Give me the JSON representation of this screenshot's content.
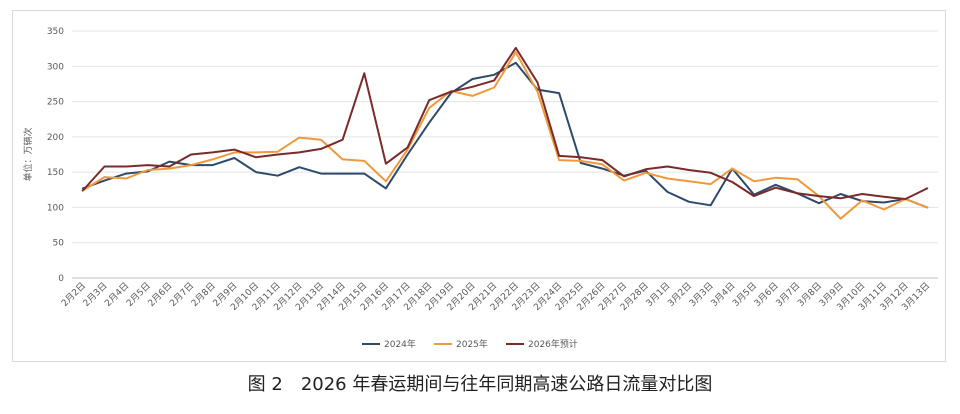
{
  "caption": {
    "prefix": "图 2",
    "text": "2026 年春运期间与往年同期高速公路日流量对比图"
  },
  "chart_data": {
    "type": "line",
    "title": "",
    "ylabel": "单位：万辆次",
    "xlabel": "",
    "ylim": [
      0,
      350
    ],
    "yticks": [
      0,
      50,
      100,
      150,
      200,
      250,
      300,
      350
    ],
    "grid": "horizontal",
    "legend_position": "bottom",
    "categories": [
      "2月2日",
      "2月3日",
      "2月4日",
      "2月5日",
      "2月6日",
      "2月7日",
      "2月8日",
      "2月9日",
      "2月10日",
      "2月11日",
      "2月12日",
      "2月13日",
      "2月14日",
      "2月15日",
      "2月16日",
      "2月17日",
      "2月18日",
      "2月19日",
      "2月20日",
      "2月21日",
      "2月22日",
      "2月23日",
      "2月24日",
      "2月25日",
      "2月26日",
      "2月27日",
      "2月28日",
      "3月1日",
      "3月2日",
      "3月3日",
      "3月4日",
      "3月5日",
      "3月6日",
      "3月7日",
      "3月8日",
      "3月9日",
      "3月10日",
      "3月11日",
      "3月12日",
      "3月13日"
    ],
    "series": [
      {
        "name": "2024年",
        "color": "#2e4a6b",
        "values": [
          127,
          138,
          148,
          151,
          165,
          160,
          160,
          170,
          150,
          145,
          157,
          148,
          148,
          148,
          127,
          175,
          220,
          262,
          282,
          288,
          305,
          267,
          262,
          163,
          155,
          145,
          152,
          122,
          108,
          103,
          155,
          118,
          132,
          120,
          106,
          119,
          109,
          107,
          112,
          100
        ]
      },
      {
        "name": "2025年",
        "color": "#f0993a",
        "values": [
          124,
          143,
          141,
          153,
          155,
          160,
          168,
          178,
          178,
          179,
          199,
          196,
          168,
          166,
          137,
          182,
          241,
          265,
          258,
          270,
          320,
          264,
          167,
          166,
          161,
          138,
          149,
          141,
          137,
          133,
          155,
          137,
          142,
          140,
          116,
          84,
          110,
          97,
          112,
          100
        ]
      },
      {
        "name": "2026年预计",
        "color": "#7a2a2a",
        "values": [
          124,
          158,
          158,
          160,
          158,
          175,
          178,
          182,
          171,
          175,
          178,
          183,
          196,
          290,
          162,
          185,
          252,
          264,
          271,
          280,
          326,
          277,
          173,
          171,
          167,
          144,
          154,
          158,
          153,
          149,
          136,
          116,
          128,
          120,
          116,
          113,
          119,
          115,
          112,
          127
        ]
      }
    ]
  }
}
